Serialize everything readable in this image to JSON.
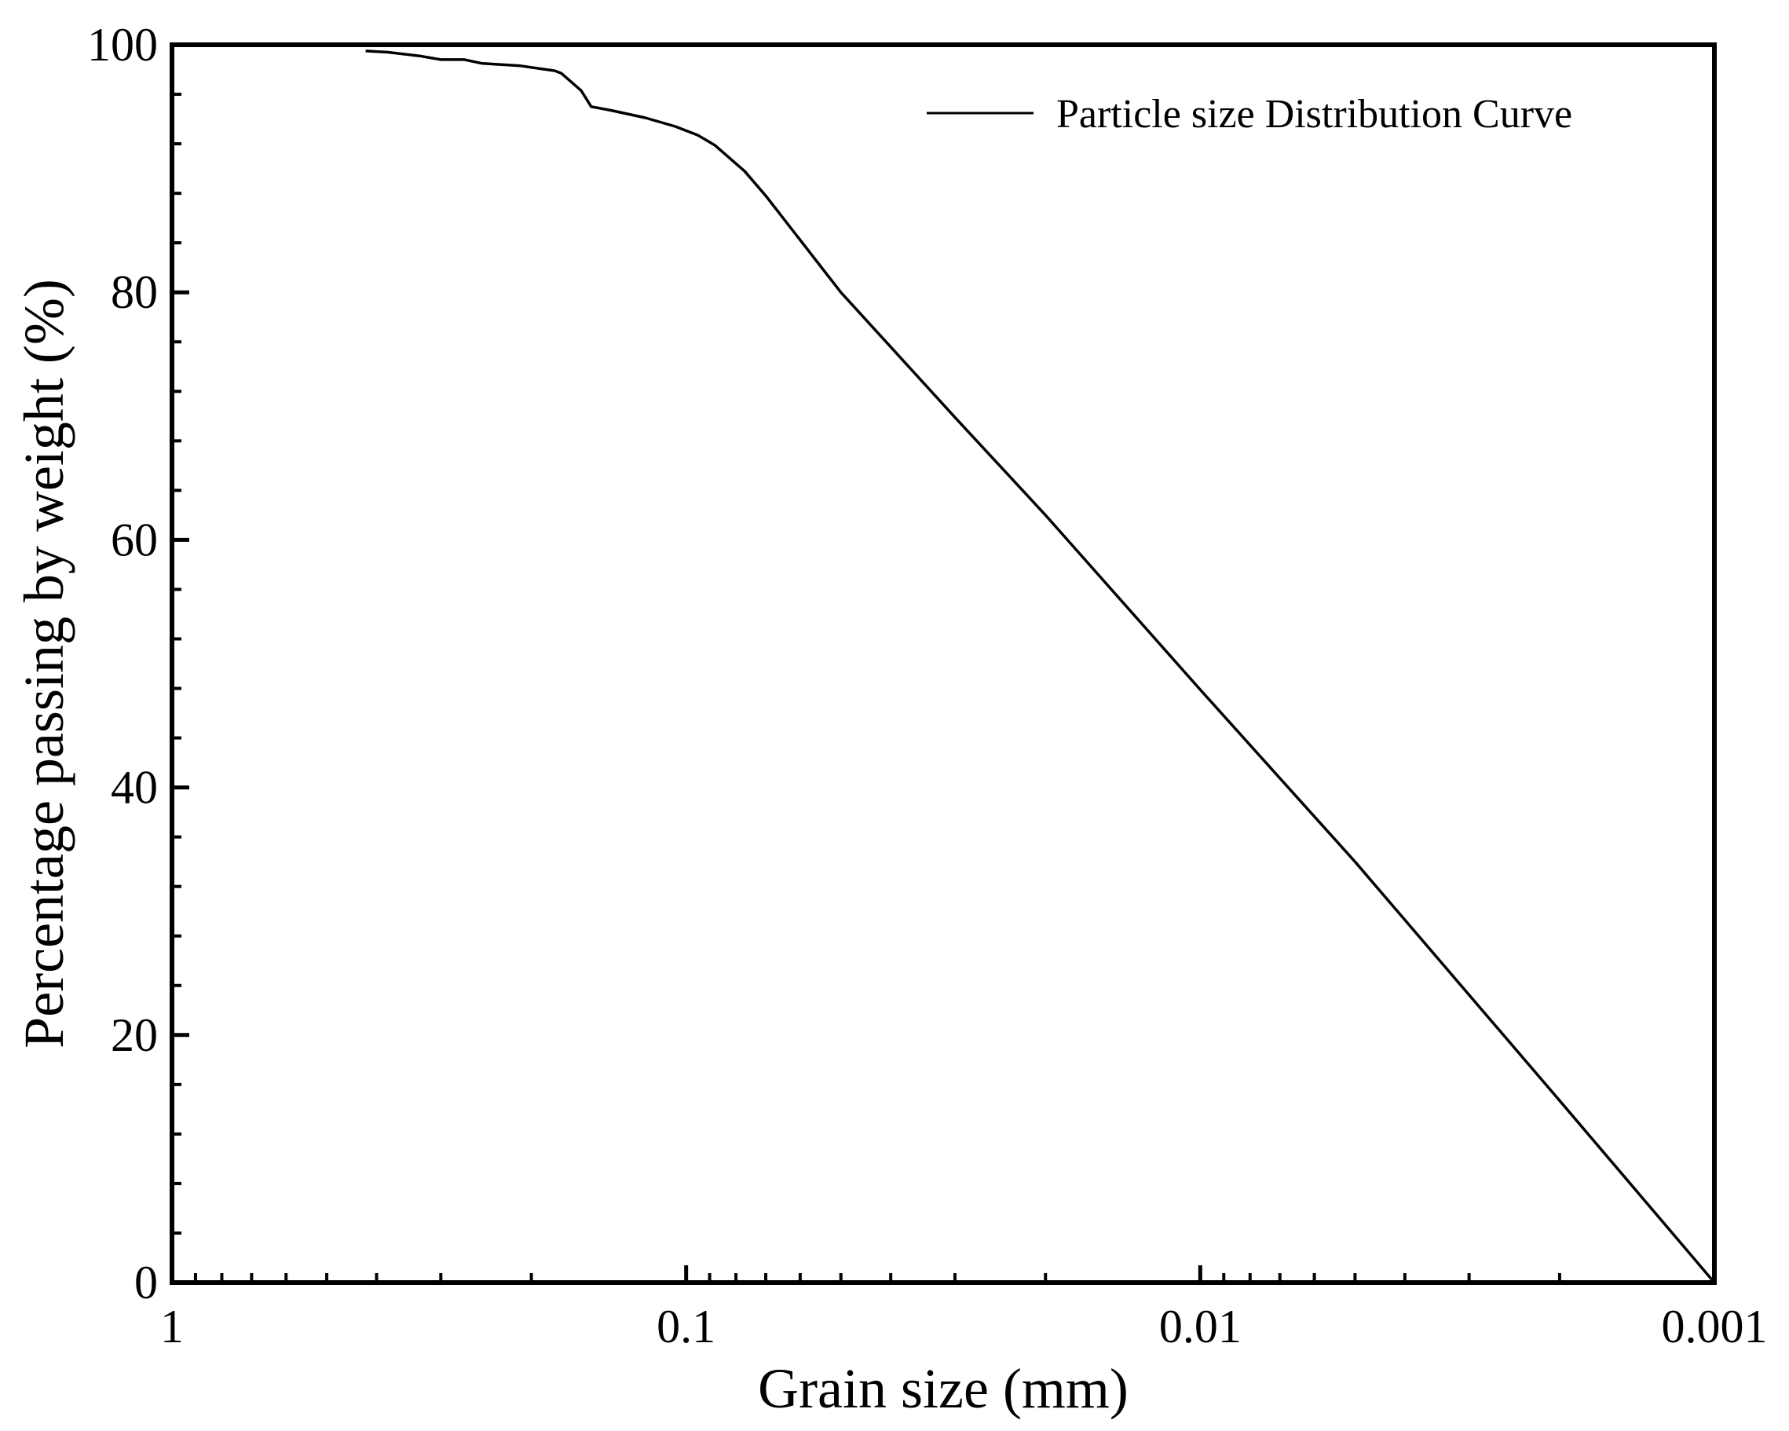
{
  "chart_data": {
    "type": "line",
    "title": "",
    "xlabel": "Grain size (mm)",
    "ylabel": "Percentage passing by weight (%)",
    "x_scale": "log",
    "x_reversed": true,
    "xlim": [
      1,
      0.001
    ],
    "ylim": [
      0,
      100
    ],
    "x_ticks": [
      {
        "value": 1,
        "label": "1"
      },
      {
        "value": 0.1,
        "label": "0.1"
      },
      {
        "value": 0.01,
        "label": "0.01"
      },
      {
        "value": 0.001,
        "label": "0.001"
      }
    ],
    "y_ticks": [
      {
        "value": 0,
        "label": "0"
      },
      {
        "value": 20,
        "label": "20"
      },
      {
        "value": 40,
        "label": "40"
      },
      {
        "value": 60,
        "label": "60"
      },
      {
        "value": 80,
        "label": "80"
      },
      {
        "value": 100,
        "label": "100"
      }
    ],
    "grid": false,
    "legend_position": "top-right",
    "series": [
      {
        "name": "Particle size Distribution Curve",
        "color": "#000000",
        "points": [
          {
            "x": 0.42,
            "y": 99.5
          },
          {
            "x": 0.38,
            "y": 99.4
          },
          {
            "x": 0.33,
            "y": 99.1
          },
          {
            "x": 0.3,
            "y": 98.8
          },
          {
            "x": 0.27,
            "y": 98.8
          },
          {
            "x": 0.25,
            "y": 98.5
          },
          {
            "x": 0.21,
            "y": 98.3
          },
          {
            "x": 0.18,
            "y": 97.9
          },
          {
            "x": 0.175,
            "y": 97.7
          },
          {
            "x": 0.16,
            "y": 96.3
          },
          {
            "x": 0.153,
            "y": 95.0
          },
          {
            "x": 0.14,
            "y": 94.7
          },
          {
            "x": 0.12,
            "y": 94.1
          },
          {
            "x": 0.105,
            "y": 93.4
          },
          {
            "x": 0.095,
            "y": 92.7
          },
          {
            "x": 0.088,
            "y": 91.9
          },
          {
            "x": 0.077,
            "y": 89.8
          },
          {
            "x": 0.07,
            "y": 87.8
          },
          {
            "x": 0.05,
            "y": 80.0
          },
          {
            "x": 0.03,
            "y": 69.9
          },
          {
            "x": 0.02,
            "y": 62.0
          },
          {
            "x": 0.01,
            "y": 47.9
          },
          {
            "x": 0.005,
            "y": 34.0
          },
          {
            "x": 0.002,
            "y": 14.7
          },
          {
            "x": 0.001,
            "y": 0.0
          }
        ]
      }
    ]
  }
}
